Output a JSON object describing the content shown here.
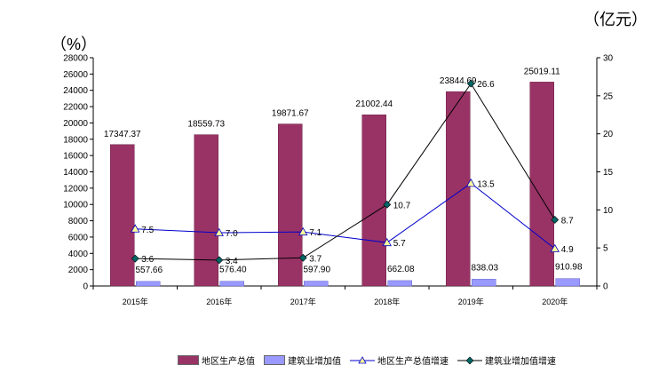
{
  "chart_data": {
    "type": "bar",
    "categories": [
      "2015年",
      "2016年",
      "2017年",
      "2018年",
      "2019年",
      "2020年"
    ],
    "left_unit": "（%）",
    "right_unit": "（亿元）",
    "left_axis": {
      "ylim": [
        0,
        28000
      ],
      "ticks": [
        0,
        2000,
        4000,
        6000,
        8000,
        10000,
        12000,
        14000,
        16000,
        18000,
        20000,
        22000,
        24000,
        26000,
        28000
      ]
    },
    "right_axis": {
      "ylim": [
        0,
        30
      ],
      "ticks": [
        0,
        5,
        10,
        15,
        20,
        25,
        30
      ]
    },
    "series": [
      {
        "name": "地区生产总值",
        "kind": "bar",
        "axis": "left",
        "color": "#993366",
        "values": [
          17347.37,
          18559.73,
          19871.67,
          21002.44,
          23844.69,
          25019.11
        ],
        "labels": [
          "17347.37",
          "18559.73",
          "19871.67",
          "21002.44",
          "23844.69",
          "25019.11"
        ]
      },
      {
        "name": "建筑业增加值",
        "kind": "bar",
        "axis": "left",
        "color": "#9999ff",
        "values": [
          557.66,
          576.4,
          597.9,
          662.08,
          838.03,
          910.98
        ],
        "labels": [
          "557.66",
          "576.40",
          "597.90",
          "662.08",
          "838.03",
          "910.98"
        ]
      },
      {
        "name": "地区生产总值增速",
        "kind": "line",
        "axis": "right",
        "color": "#0000cc",
        "marker": "triangle",
        "marker_color": "#ffff99",
        "values": [
          7.5,
          7.0,
          7.1,
          5.7,
          13.5,
          4.9
        ],
        "labels": [
          "7.5",
          "7.0",
          "7.1",
          "5.7",
          "13.5",
          "4.9"
        ]
      },
      {
        "name": "建筑业增加值增速",
        "kind": "line",
        "axis": "right",
        "color": "#000000",
        "marker": "diamond",
        "marker_color": "#006666",
        "values": [
          3.6,
          3.4,
          3.7,
          10.7,
          26.6,
          8.7
        ],
        "labels": [
          "3.6",
          "3.4",
          "3.7",
          "10.7",
          "26.6",
          "8.7"
        ]
      }
    ],
    "legend_position": "bottom"
  }
}
